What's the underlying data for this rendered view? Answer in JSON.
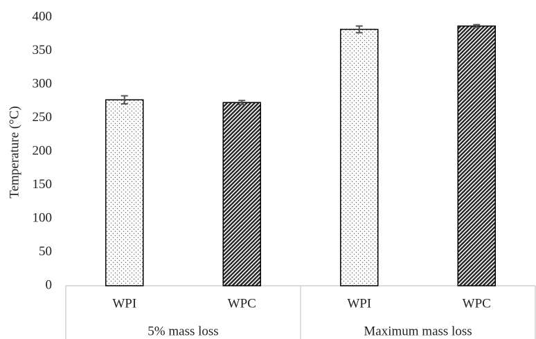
{
  "chart_data": {
    "type": "bar",
    "y_label": "Temperature (°C)",
    "categories": [
      "WPI",
      "WPC",
      "WPI",
      "WPC"
    ],
    "groups": [
      "5% mass loss",
      "Maximum mass loss"
    ],
    "values": [
      277,
      273,
      382,
      387
    ],
    "errors": [
      6,
      3,
      5,
      2
    ],
    "patterns": [
      "dots",
      "hatch",
      "dots",
      "hatch"
    ],
    "color": "#000000",
    "ylim": [
      0,
      400
    ],
    "yticks": [
      0,
      50,
      100,
      150,
      200,
      250,
      300,
      350,
      400
    ],
    "grid": false
  }
}
